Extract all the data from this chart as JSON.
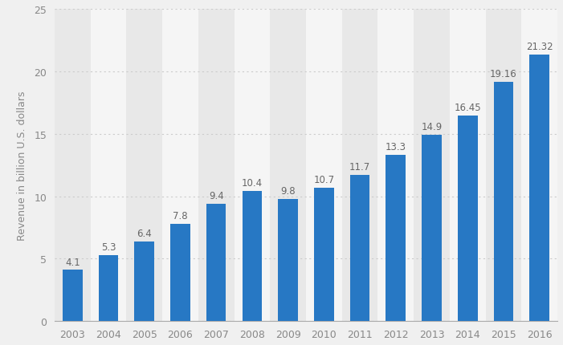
{
  "years": [
    "2003",
    "2004",
    "2005",
    "2006",
    "2007",
    "2008",
    "2009",
    "2010",
    "2011",
    "2012",
    "2013",
    "2014",
    "2015",
    "2016"
  ],
  "values": [
    4.1,
    5.3,
    6.4,
    7.8,
    9.4,
    10.4,
    9.8,
    10.7,
    11.7,
    13.3,
    14.9,
    16.45,
    19.16,
    21.32
  ],
  "bar_color": "#2778c4",
  "background_color": "#f0f0f0",
  "col_bg_light": "#f5f5f5",
  "col_bg_dark": "#e8e8e8",
  "ylabel": "Revenue in billion U.S. dollars",
  "ylim": [
    0,
    25
  ],
  "yticks": [
    0,
    5,
    10,
    15,
    20,
    25
  ],
  "grid_color": "#cccccc",
  "label_color": "#888888",
  "bar_label_color": "#666666",
  "ylabel_fontsize": 9,
  "tick_fontsize": 9,
  "bar_label_fontsize": 8.5
}
